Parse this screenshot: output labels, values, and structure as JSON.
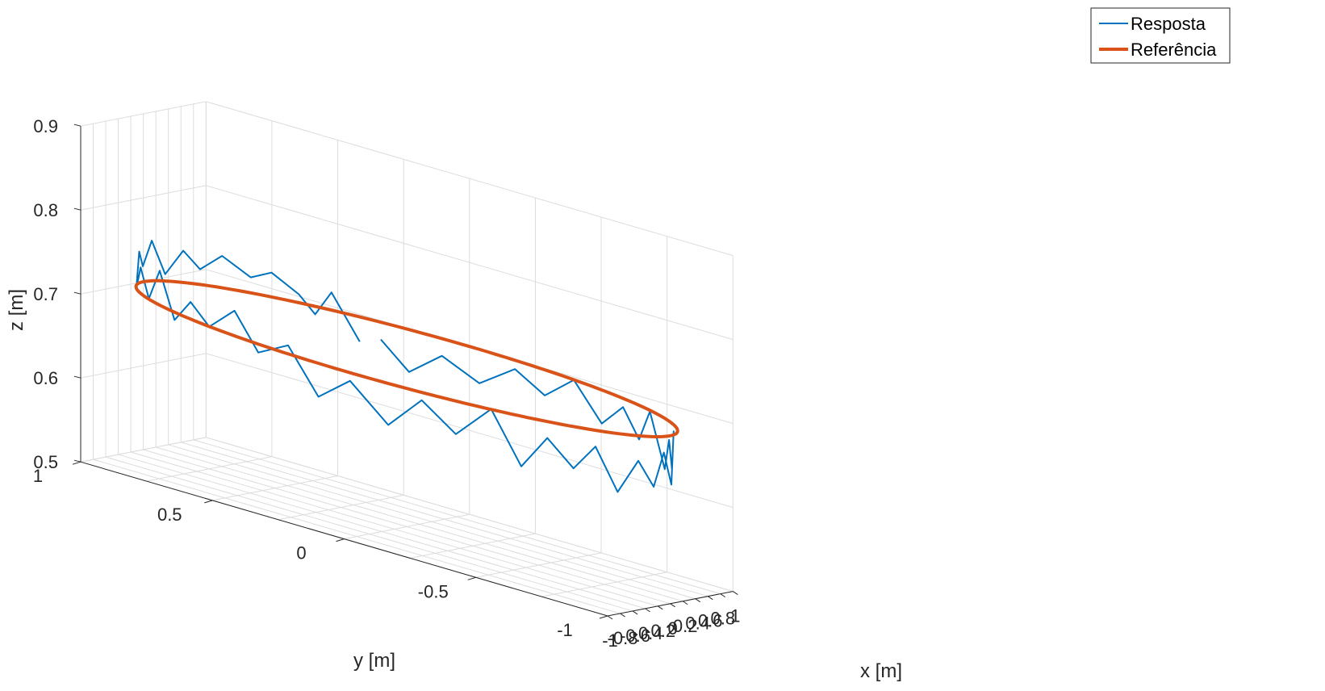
{
  "chart_data": {
    "type": "line",
    "projection": "3d",
    "xlabel": "x [m]",
    "ylabel": "y [m]",
    "zlabel": "z [m]",
    "xlim": [
      -1,
      1
    ],
    "ylim": [
      -1,
      1
    ],
    "zlim": [
      0.5,
      0.9
    ],
    "xticks": [
      "-1",
      "-0.8",
      "-0.6",
      "-0.4",
      "-0.2",
      "0",
      "0.2",
      "0.4",
      "0.6",
      "0.8",
      "1"
    ],
    "yticks": [
      "-1",
      "-0.5",
      "0",
      "0.5",
      "1"
    ],
    "zticks": [
      "0.5",
      "0.6",
      "0.7",
      "0.8",
      "0.9"
    ],
    "grid": true,
    "legend_position": "top-right",
    "series": [
      {
        "name": "Resposta",
        "color": "#0072BD",
        "style": "thin",
        "points": [
          [
            0.93,
            0.4,
            0.67
          ],
          [
            0.9,
            0.5,
            0.72
          ],
          [
            0.85,
            0.55,
            0.69
          ],
          [
            0.8,
            0.6,
            0.71
          ],
          [
            0.7,
            0.68,
            0.73
          ],
          [
            0.62,
            0.74,
            0.72
          ],
          [
            0.5,
            0.82,
            0.74
          ],
          [
            0.4,
            0.88,
            0.72
          ],
          [
            0.3,
            0.92,
            0.74
          ],
          [
            0.18,
            0.96,
            0.71
          ],
          [
            0.05,
            0.98,
            0.75
          ],
          [
            -0.05,
            0.99,
            0.72
          ],
          [
            -0.15,
            0.98,
            0.74
          ],
          [
            -0.28,
            0.96,
            0.7
          ],
          [
            -0.38,
            0.92,
            0.73
          ],
          [
            -0.5,
            0.86,
            0.7
          ],
          [
            -0.58,
            0.8,
            0.74
          ],
          [
            -0.68,
            0.72,
            0.69
          ],
          [
            -0.76,
            0.64,
            0.72
          ],
          [
            -0.84,
            0.55,
            0.7
          ],
          [
            -0.9,
            0.44,
            0.73
          ],
          [
            -0.94,
            0.34,
            0.69
          ],
          [
            -0.97,
            0.22,
            0.71
          ],
          [
            -0.99,
            0.1,
            0.66
          ],
          [
            -0.99,
            -0.02,
            0.69
          ],
          [
            -0.97,
            -0.16,
            0.65
          ],
          [
            -0.94,
            -0.28,
            0.69
          ],
          [
            -0.9,
            -0.4,
            0.66
          ],
          [
            -0.84,
            -0.52,
            0.7
          ],
          [
            -0.78,
            -0.62,
            0.64
          ],
          [
            -0.7,
            -0.7,
            0.68
          ],
          [
            -0.62,
            -0.78,
            0.65
          ],
          [
            -0.52,
            -0.84,
            0.68
          ],
          [
            -0.42,
            -0.9,
            0.63
          ],
          [
            -0.3,
            -0.95,
            0.67
          ],
          [
            -0.18,
            -0.98,
            0.64
          ],
          [
            -0.06,
            -0.99,
            0.68
          ],
          [
            0.06,
            -0.99,
            0.64
          ],
          [
            0.18,
            -0.97,
            0.7
          ],
          [
            0.28,
            -0.94,
            0.65
          ],
          [
            0.4,
            -0.9,
            0.68
          ],
          [
            0.5,
            -0.86,
            0.64
          ],
          [
            0.6,
            -0.78,
            0.7
          ],
          [
            0.68,
            -0.72,
            0.66
          ],
          [
            0.76,
            -0.64,
            0.69
          ],
          [
            0.84,
            -0.54,
            0.66
          ],
          [
            0.9,
            -0.42,
            0.7
          ],
          [
            0.94,
            -0.3,
            0.67
          ],
          [
            0.97,
            -0.18,
            0.69
          ],
          [
            0.99,
            -0.04,
            0.66
          ],
          [
            0.98,
            0.1,
            0.68
          ],
          [
            0.96,
            0.22,
            0.65
          ],
          [
            0.93,
            0.32,
            0.68
          ]
        ]
      },
      {
        "name": "Referência",
        "color": "#D95319",
        "style": "thick",
        "circle": {
          "center_x": 0,
          "center_y": 0,
          "radius": 1,
          "z": 0.7
        }
      }
    ]
  }
}
